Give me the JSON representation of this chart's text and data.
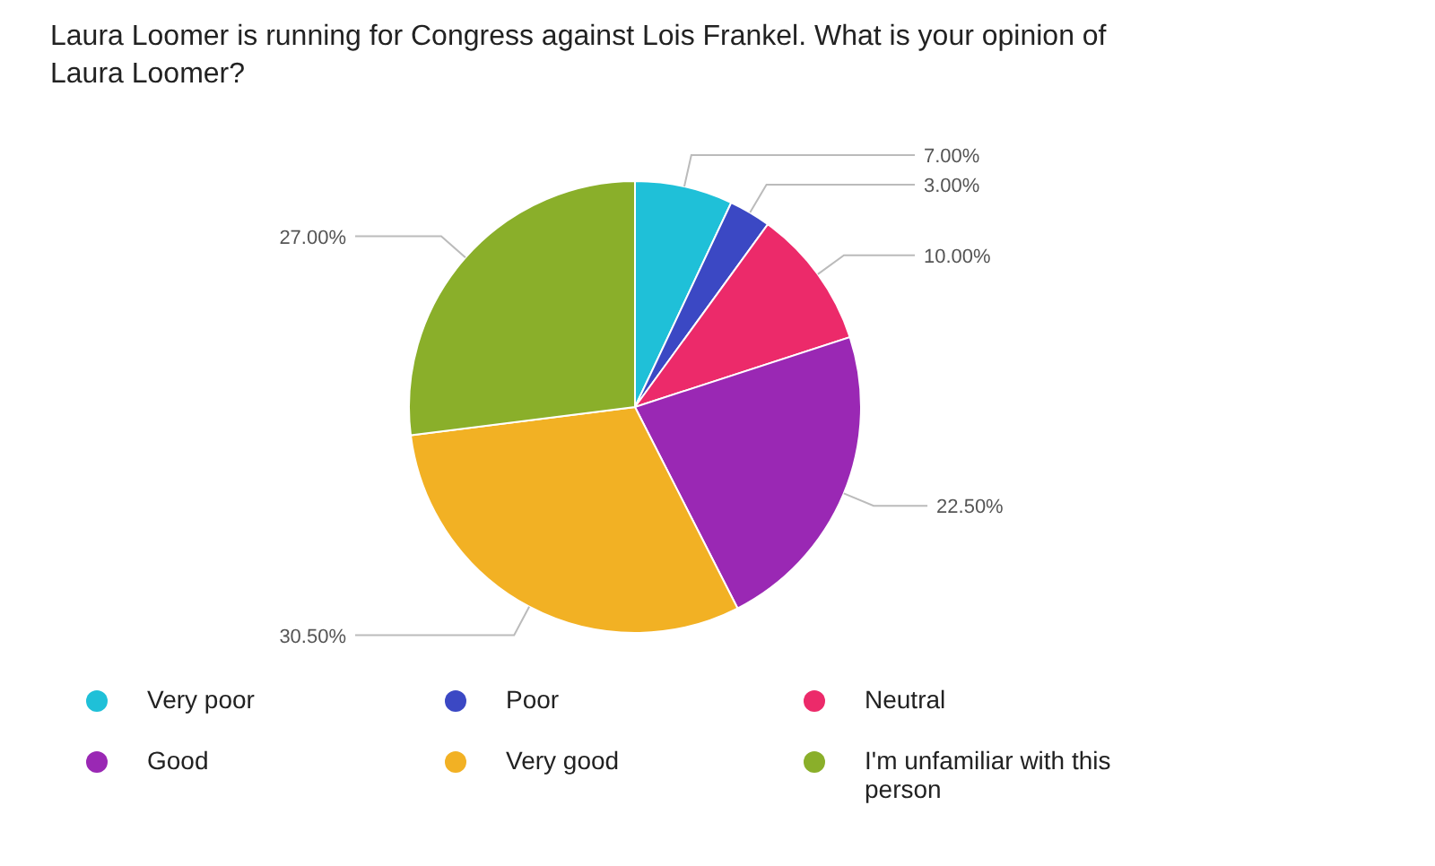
{
  "chart_data": {
    "type": "pie",
    "title": "Laura Loomer is running for Congress against Lois Frankel.  What is your opinion of Laura Loomer?",
    "categories": [
      "Very poor",
      "Poor",
      "Neutral",
      "Good",
      "Very good",
      "I'm unfamiliar with this person"
    ],
    "values": [
      7,
      3,
      10,
      22.5,
      30.5,
      27
    ],
    "value_labels": [
      "7.00%",
      "3.00%",
      "10.00%",
      "22.50%",
      "30.50%",
      "27.00%"
    ],
    "colors": [
      "#1fc0d8",
      "#3b48c4",
      "#ec2a6a",
      "#9a28b4",
      "#f2b124",
      "#8aaf2a"
    ],
    "legend": "bottom"
  }
}
